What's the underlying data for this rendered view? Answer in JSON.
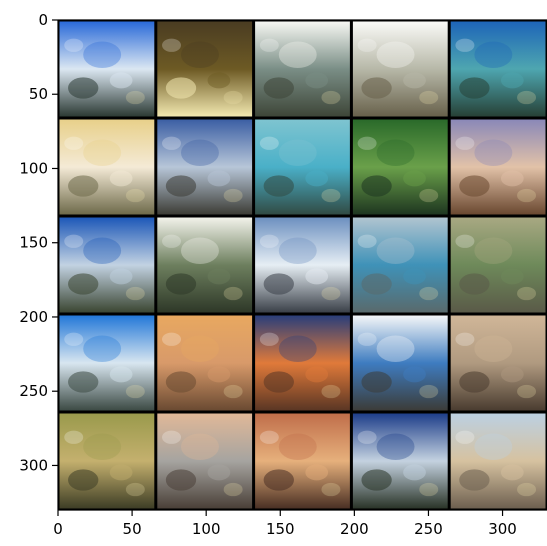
{
  "figure": {
    "type": "image-grid",
    "rows": 5,
    "cols": 5,
    "separator_color": "#000000",
    "image_extent": {
      "x": [
        0,
        330
      ],
      "y": [
        0,
        330
      ]
    },
    "x_ticks": [
      {
        "value": 0,
        "label": "0"
      },
      {
        "value": 50,
        "label": "50"
      },
      {
        "value": 100,
        "label": "100"
      },
      {
        "value": 150,
        "label": "150"
      },
      {
        "value": 200,
        "label": "200"
      },
      {
        "value": 250,
        "label": "250"
      },
      {
        "value": 300,
        "label": "300"
      }
    ],
    "y_ticks": [
      {
        "value": 0,
        "label": "0"
      },
      {
        "value": 50,
        "label": "50"
      },
      {
        "value": 100,
        "label": "100"
      },
      {
        "value": 150,
        "label": "150"
      },
      {
        "value": 200,
        "label": "200"
      },
      {
        "value": 250,
        "label": "250"
      },
      {
        "value": 300,
        "label": "300"
      }
    ],
    "tiles": [
      {
        "name": "blue-sky-coast",
        "colors": [
          "#2a6ad8",
          "#dbe7f2",
          "#2c3a34"
        ]
      },
      {
        "name": "dark-yellow-blotch",
        "colors": [
          "#4a3c22",
          "#6d5a24",
          "#f2e8b0"
        ]
      },
      {
        "name": "white-sky-shore",
        "colors": [
          "#f6f7f2",
          "#7a8e86",
          "#3e4638"
        ]
      },
      {
        "name": "bright-haze",
        "colors": [
          "#fafaf7",
          "#b7b8a8",
          "#68614b"
        ]
      },
      {
        "name": "teal-blue-scene",
        "colors": [
          "#1e65b8",
          "#4ea6b0",
          "#274136"
        ]
      },
      {
        "name": "yellow-beige-field",
        "colors": [
          "#e8d08a",
          "#f4ead6",
          "#6e6a4a"
        ]
      },
      {
        "name": "blue-grey-shore",
        "colors": [
          "#3c5fa4",
          "#b7c6d8",
          "#3d3d36"
        ]
      },
      {
        "name": "cyan-sea",
        "colors": [
          "#7ec4d0",
          "#4ab0c8",
          "#314b44"
        ]
      },
      {
        "name": "green-forest",
        "colors": [
          "#2a6a2a",
          "#6aa04a",
          "#1e3620"
        ]
      },
      {
        "name": "purple-sunset",
        "colors": [
          "#8a88b8",
          "#e2c2a8",
          "#6a4830"
        ]
      },
      {
        "name": "blue-sky-field",
        "colors": [
          "#1d58b8",
          "#c2d2e2",
          "#3b4632"
        ]
      },
      {
        "name": "white-green-trees",
        "colors": [
          "#f2f2ea",
          "#6d7f5e",
          "#2e3828"
        ]
      },
      {
        "name": "blue-white-rocks",
        "colors": [
          "#6d90c0",
          "#e6eef4",
          "#3a4048"
        ]
      },
      {
        "name": "misty-blue-lake",
        "colors": [
          "#b0c4d0",
          "#3f92b8",
          "#596a6c"
        ]
      },
      {
        "name": "olive-haze",
        "colors": [
          "#a8a882",
          "#6e8a5a",
          "#5a5a48"
        ]
      },
      {
        "name": "azure-coast",
        "colors": [
          "#2378d8",
          "#d8e6f0",
          "#3c4a44"
        ]
      },
      {
        "name": "orange-dunes",
        "colors": [
          "#e8a860",
          "#d89a6a",
          "#6a4a32"
        ]
      },
      {
        "name": "dusk-orange-sea",
        "colors": [
          "#2a3e7a",
          "#e07a3a",
          "#5a3624"
        ]
      },
      {
        "name": "white-blue-shore",
        "colors": [
          "#f4f6f8",
          "#3e7cc0",
          "#3c3c38"
        ]
      },
      {
        "name": "tan-rocks",
        "colors": [
          "#d0b698",
          "#b09a80",
          "#4a3c30"
        ]
      },
      {
        "name": "olive-meadow",
        "colors": [
          "#9a9a4c",
          "#c4b06e",
          "#3e3e26"
        ]
      },
      {
        "name": "peach-cliffs",
        "colors": [
          "#e0b898",
          "#a6a4a0",
          "#4a4038"
        ]
      },
      {
        "name": "rust-sunset",
        "colors": [
          "#c06e4a",
          "#e6b07c",
          "#4a3024"
        ]
      },
      {
        "name": "deep-blue-bay",
        "colors": [
          "#1e3e8a",
          "#c4d2e0",
          "#2a3428"
        ]
      },
      {
        "name": "pale-blue-sand",
        "colors": [
          "#bcd0e2",
          "#d6c2a0",
          "#6e6050"
        ]
      }
    ]
  }
}
